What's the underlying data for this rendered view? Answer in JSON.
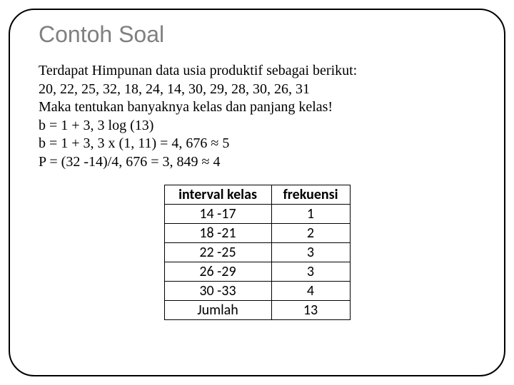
{
  "title": "Contoh Soal",
  "lines": {
    "l1": "Terdapat Himpunan data usia produktif sebagai berikut:",
    "l2": "20, 22, 25, 32, 18, 24, 14, 30, 29, 28, 30, 26,  31",
    "l3": "Maka tentukan banyaknya kelas dan panjang kelas!",
    "l4": "b = 1 + 3, 3 log (13)",
    "l5": "b = 1 + 3, 3 x (1, 11) = 4, 676 ≈ 5",
    "l6": "P = (32 -14)/4, 676 = 3, 849 ≈ 4"
  },
  "table": {
    "headers": {
      "interval": "interval kelas",
      "freq": "frekuensi"
    },
    "rows": [
      {
        "interval": "14 -17",
        "freq": "1"
      },
      {
        "interval": "18 -21",
        "freq": "2"
      },
      {
        "interval": "22 -25",
        "freq": "3"
      },
      {
        "interval": "26 -29",
        "freq": "3"
      },
      {
        "interval": "30 -33",
        "freq": "4"
      },
      {
        "interval": "Jumlah",
        "freq": "13"
      }
    ],
    "border_color": "#000000",
    "font_family": "Calibri",
    "font_size_pt": 15
  },
  "colors": {
    "title": "#808080",
    "body_text": "#000000",
    "background": "#ffffff",
    "slide_border": "#000000"
  },
  "typography": {
    "title_fontsize_pt": 24,
    "body_fontsize_pt": 15,
    "title_font": "Arial",
    "body_font": "Times New Roman"
  }
}
